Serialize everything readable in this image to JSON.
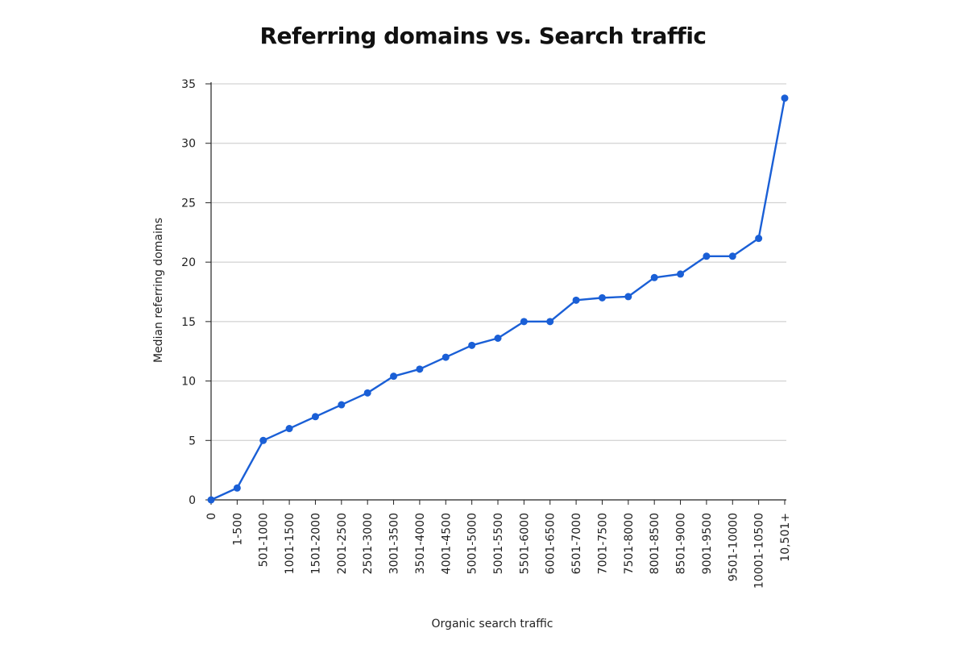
{
  "chart_data": {
    "type": "line",
    "title": "Referring domains vs. Search traffic",
    "xlabel": "Organic search traffic",
    "ylabel": "Median referring domains",
    "categories": [
      "0",
      "1-500",
      "501-1000",
      "1001-1500",
      "1501-2000",
      "2001-2500",
      "2501-3000",
      "3001-3500",
      "3501-4000",
      "4001-4500",
      "5001-5000",
      "5001-5500",
      "5501-6000",
      "6001-6500",
      "6501-7000",
      "7001-7500",
      "7501-8000",
      "8001-8500",
      "8501-9000",
      "9001-9500",
      "9501-10000",
      "10001-10500",
      "10,501+"
    ],
    "series": [
      {
        "values": [
          0,
          1,
          5,
          6,
          7,
          8,
          9,
          10.4,
          11,
          12,
          13,
          13.6,
          15,
          15,
          16.8,
          17,
          17.1,
          18.7,
          19,
          20.5,
          20.5,
          22,
          33.8
        ]
      }
    ],
    "ylim": [
      0,
      35
    ],
    "yticks": [
      0,
      5,
      10,
      15,
      20,
      25,
      30,
      35
    ],
    "grid": true,
    "line_color": "#1a5fd6",
    "grid_color": "#c8c8c8"
  }
}
